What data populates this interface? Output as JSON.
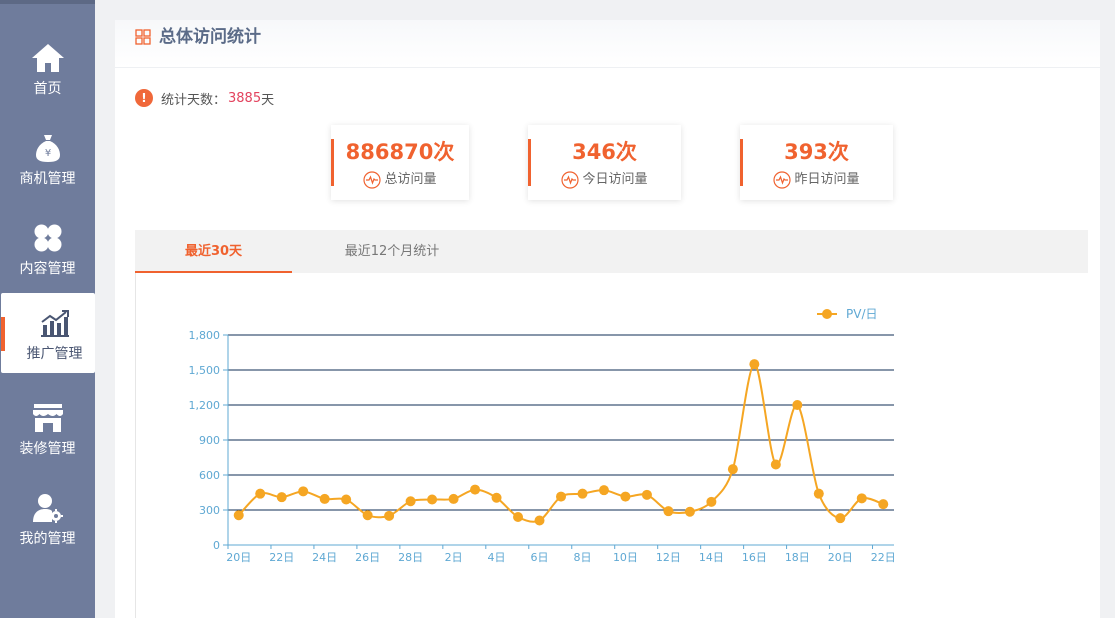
{
  "sidebar": {
    "items": [
      {
        "label": "首页",
        "icon": "home-icon"
      },
      {
        "label": "商机管理",
        "icon": "money-bag-icon"
      },
      {
        "label": "内容管理",
        "icon": "clover-icon"
      },
      {
        "label": "推广管理",
        "icon": "growth-chart-icon",
        "active": true
      },
      {
        "label": "装修管理",
        "icon": "storefront-icon"
      },
      {
        "label": "我的管理",
        "icon": "user-gear-icon"
      }
    ]
  },
  "panel": {
    "title": "总体访问统计",
    "days_label": "统计天数：",
    "days_value": "3885",
    "days_unit": "天"
  },
  "stats": [
    {
      "value": "886870次",
      "label": "总访问量"
    },
    {
      "value": "346次",
      "label": "今日访问量"
    },
    {
      "value": "393次",
      "label": "昨日访问量"
    }
  ],
  "tabs": [
    {
      "label": "最近30天",
      "active": true
    },
    {
      "label": "最近12个月统计",
      "active": false
    }
  ],
  "colors": {
    "accent": "#f0622f",
    "line": "#f5a623",
    "axis": "#5fa8d3",
    "grid": "#0f2d54"
  },
  "chart_data": {
    "type": "line",
    "legend": "PV/日",
    "legend_position": "top-right",
    "ylim": [
      0,
      1800
    ],
    "yticks": [
      "0",
      "300",
      "600",
      "900",
      "1,200",
      "1,500",
      "1,800"
    ],
    "xtick_labels": [
      "20日",
      "22日",
      "24日",
      "26日",
      "28日",
      "2日",
      "4日",
      "6日",
      "8日",
      "10日",
      "12日",
      "14日",
      "16日",
      "18日",
      "20日",
      "22日"
    ],
    "series": [
      {
        "name": "PV/日",
        "values": [
          255,
          440,
          410,
          460,
          395,
          390,
          255,
          250,
          375,
          390,
          395,
          475,
          405,
          240,
          210,
          415,
          440,
          470,
          415,
          430,
          290,
          285,
          370,
          650,
          1550,
          690,
          1200,
          440,
          230,
          400,
          350
        ]
      }
    ],
    "grid": true
  }
}
